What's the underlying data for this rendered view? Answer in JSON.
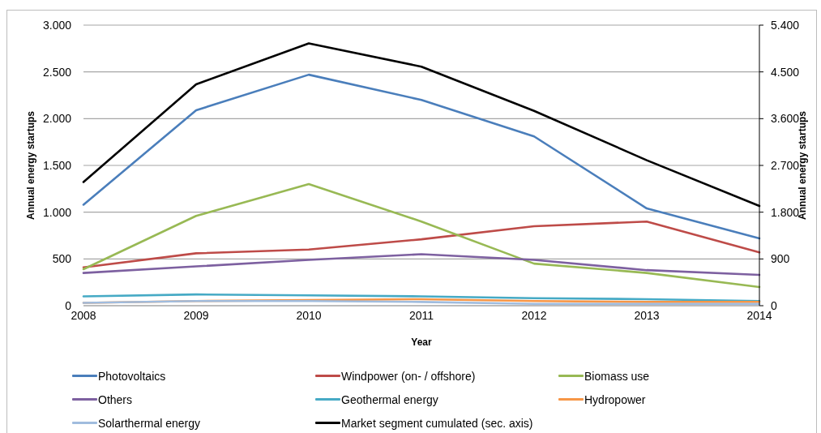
{
  "chart_data": {
    "type": "line",
    "categories": [
      "2008",
      "2009",
      "2010",
      "2011",
      "2012",
      "2013",
      "2014"
    ],
    "xlabel": "Year",
    "ylabel": "Annual energy startups",
    "y2label": "Annual energy startups",
    "ylim": [
      0,
      3000
    ],
    "yticks": [
      0,
      500,
      {
        "value": 1000,
        "label": "1.000"
      },
      {
        "value": 1500,
        "label": "1.500"
      },
      {
        "value": 2000,
        "label": "2.000"
      },
      {
        "value": 2500,
        "label": "2.500"
      },
      {
        "value": 3000,
        "label": "3.000"
      }
    ],
    "y2lim": [
      0,
      5400
    ],
    "y2ticks": [
      0,
      900,
      {
        "value": 1800,
        "label": "1.800"
      },
      {
        "value": 2700,
        "label": "2.700"
      },
      {
        "value": 3600,
        "label": "3.600"
      },
      {
        "value": 4500,
        "label": "4.500"
      },
      {
        "value": 5400,
        "label": "5.400"
      }
    ],
    "grid": "y",
    "legend": "bottom",
    "marker": "none",
    "line_style": "solid",
    "series": [
      {
        "name": "Photovoltaics",
        "color": "#4a7ebb",
        "values": [
          1080,
          2090,
          2470,
          2200,
          1810,
          1040,
          720
        ]
      },
      {
        "name": "Windpower (on- / offshore)",
        "color": "#be4b48",
        "values": [
          410,
          560,
          600,
          710,
          850,
          900,
          570
        ]
      },
      {
        "name": "Biomass use",
        "color": "#98b954",
        "values": [
          390,
          960,
          1300,
          900,
          450,
          350,
          200
        ]
      },
      {
        "name": "Others",
        "color": "#7d60a0",
        "values": [
          350,
          420,
          490,
          550,
          490,
          380,
          330
        ]
      },
      {
        "name": "Geothermal energy",
        "color": "#46aac5",
        "values": [
          100,
          120,
          110,
          100,
          80,
          70,
          50
        ]
      },
      {
        "name": "Hydropower",
        "color": "#f79646",
        "values": [
          30,
          50,
          60,
          70,
          50,
          40,
          40
        ]
      },
      {
        "name": "Solarthermal energy",
        "color": "#a0bcde",
        "values": [
          30,
          50,
          50,
          40,
          20,
          20,
          20
        ]
      },
      {
        "name": "Market segment cumulated (sec. axis)",
        "color": "#000000",
        "axis": "y2",
        "values": [
          2380,
          4260,
          5050,
          4600,
          3750,
          2800,
          1920
        ]
      }
    ]
  }
}
